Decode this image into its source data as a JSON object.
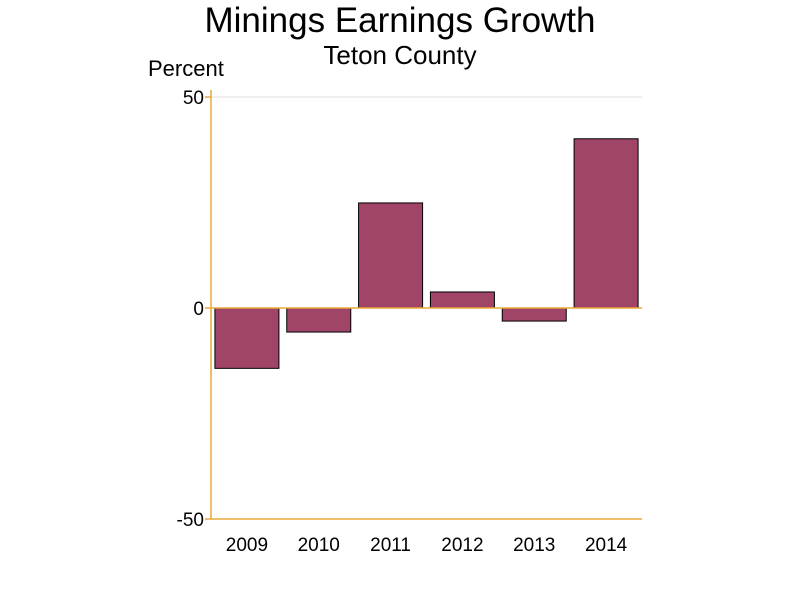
{
  "chart_data": {
    "type": "bar",
    "title": "Minings Earnings Growth",
    "subtitle": "Teton County",
    "ylabel": "Percent",
    "xlabel": "",
    "categories": [
      "2009",
      "2010",
      "2011",
      "2012",
      "2013",
      "2014"
    ],
    "values": [
      -14.3,
      -5.7,
      24.9,
      3.8,
      -3.1,
      40.1
    ],
    "ylim": [
      -50,
      50
    ],
    "yticks": [
      50,
      0,
      -50
    ],
    "grid": false,
    "legend": "none"
  },
  "colors": {
    "bar": "#a04468",
    "bar_outline": "#000000",
    "axis": "#e8a93a",
    "zero_line": "#e8a93a",
    "top_ref_line": "#dddddd"
  }
}
